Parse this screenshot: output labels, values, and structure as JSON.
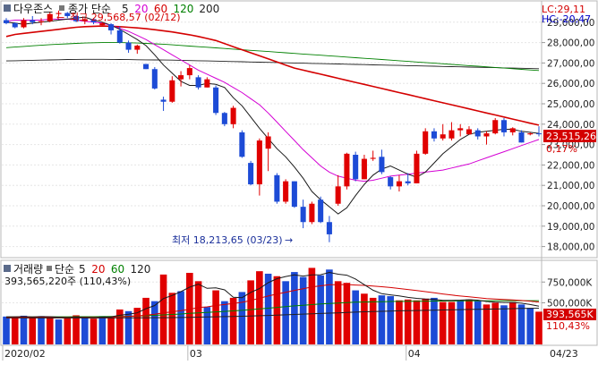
{
  "chart_data": [
    {
      "type": "candlestick",
      "legend": {
        "index_name": "다우존스",
        "settings_prefix": "종가 단순",
        "ma_periods": [
          "5",
          "20",
          "60",
          "120",
          "200"
        ],
        "ma_colors": [
          "#1a1a1a",
          "#d400d4",
          "#d40000",
          "#008000",
          "#222222"
        ]
      },
      "top_right": {
        "lc": "LC:29,11",
        "hc": "HC:-20,47"
      },
      "annotations": {
        "high_label": "최고 29,568,57 (02/12)",
        "high_value": 29568.57,
        "low_label": "최저 18,213,65 (03/23)",
        "low_value": 18213.65
      },
      "current_price_label": "23,515,26",
      "current_price": 23515.26,
      "change_pct_label": "0,17%",
      "y_ticks": [
        "29,000,00",
        "28,000,00",
        "27,000,00",
        "26,000,00",
        "25,000,00",
        "24,000,00",
        "23,000,00",
        "22,000,00",
        "21,000,00",
        "20,000,00",
        "19,000,00",
        "18,000,00"
      ],
      "y_tick_values": [
        29000,
        28000,
        27000,
        26000,
        25000,
        24000,
        23000,
        22000,
        21000,
        20000,
        19000,
        18000
      ],
      "ylim": [
        17500,
        30000
      ],
      "ohlc": [
        [
          29100,
          29200,
          28900,
          28950
        ],
        [
          28950,
          29000,
          28700,
          28750
        ],
        [
          28750,
          29200,
          28700,
          29100
        ],
        [
          29100,
          29300,
          28900,
          29000
        ],
        [
          29000,
          29200,
          28850,
          29050
        ],
        [
          29050,
          29500,
          29000,
          29400
        ],
        [
          29400,
          29568.57,
          29300,
          29450
        ],
        [
          29450,
          29500,
          29200,
          29300
        ],
        [
          29300,
          29350,
          29000,
          29050
        ],
        [
          29050,
          29200,
          28900,
          29150
        ],
        [
          29150,
          29200,
          28900,
          29000
        ],
        [
          28850,
          29000,
          28850,
          28950
        ],
        [
          28900,
          28950,
          28400,
          28600
        ],
        [
          28600,
          28800,
          27950,
          28000
        ],
        [
          28000,
          28100,
          27500,
          27650
        ],
        [
          27650,
          27900,
          27450,
          27850
        ],
        [
          26950,
          26950,
          26700,
          26700
        ],
        [
          26700,
          26800,
          25700,
          25750
        ],
        [
          25200,
          25350,
          24650,
          25100
        ],
        [
          25100,
          26350,
          25050,
          26150
        ],
        [
          26200,
          26600,
          25850,
          26400
        ],
        [
          26400,
          26900,
          26200,
          26750
        ],
        [
          26300,
          26400,
          25700,
          25800
        ],
        [
          25800,
          26300,
          25800,
          26200
        ],
        [
          25800,
          25900,
          24450,
          24550
        ],
        [
          24550,
          24600,
          23900,
          24000
        ],
        [
          24000,
          24900,
          23800,
          24800
        ],
        [
          23600,
          23700,
          22350,
          22400
        ],
        [
          22100,
          22200,
          21000,
          21050
        ],
        [
          21050,
          23300,
          20500,
          23200
        ],
        [
          22800,
          23600,
          21700,
          23400
        ],
        [
          21500,
          21600,
          20100,
          20200
        ],
        [
          20200,
          21300,
          20100,
          21200
        ],
        [
          21200,
          21200,
          19900,
          19950
        ],
        [
          19950,
          20300,
          18900,
          19200
        ],
        [
          19200,
          20200,
          19100,
          20100
        ],
        [
          20300,
          20450,
          19150,
          19200
        ],
        [
          19200,
          19500,
          18213.65,
          18600
        ],
        [
          20100,
          21500,
          20000,
          20950
        ],
        [
          20950,
          22600,
          20800,
          22550
        ],
        [
          22500,
          22650,
          21200,
          21300
        ],
        [
          21300,
          22500,
          21300,
          22300
        ],
        [
          22300,
          22700,
          22200,
          22350
        ],
        [
          22400,
          22750,
          21550,
          21650
        ],
        [
          21400,
          21450,
          20800,
          20950
        ],
        [
          20950,
          21500,
          20700,
          21200
        ],
        [
          21200,
          21600,
          21000,
          21100
        ],
        [
          21100,
          22700,
          21100,
          22550
        ],
        [
          22550,
          23800,
          22500,
          23650
        ],
        [
          23650,
          23800,
          23150,
          23300
        ],
        [
          23300,
          24000,
          23200,
          23500
        ],
        [
          23300,
          24100,
          23200,
          23700
        ],
        [
          23700,
          24000,
          23400,
          23800
        ],
        [
          23500,
          23900,
          23500,
          23750
        ],
        [
          23700,
          23800,
          23250,
          23400
        ],
        [
          23400,
          23650,
          23000,
          23550
        ],
        [
          23550,
          24300,
          23500,
          24200
        ],
        [
          24200,
          24300,
          23400,
          23600
        ],
        [
          23600,
          23850,
          23450,
          23800
        ],
        [
          23600,
          23700,
          23100,
          23100
        ],
        [
          23500,
          23600,
          23450,
          23550
        ],
        [
          23550,
          23900,
          23400,
          23515.26
        ]
      ],
      "ma": {
        "ma5": [
          29000,
          28950,
          28900,
          28950,
          29000,
          29050,
          29100,
          29150,
          29200,
          29250,
          29100,
          29000,
          28850,
          28650,
          28400,
          28150,
          27850,
          27400,
          26900,
          26500,
          26100,
          25900,
          25900,
          26000,
          25950,
          25800,
          25300,
          24900,
          24350,
          23800,
          23300,
          22800,
          22400,
          21900,
          21350,
          20700,
          20300,
          19950,
          19600,
          19900,
          20500,
          21050,
          21500,
          21800,
          21950,
          21750,
          21550,
          21400,
          21650,
          22100,
          22550,
          22900,
          23250,
          23500,
          23600,
          23650,
          23700,
          23750,
          23750,
          23650,
          23600,
          23550
        ],
        "ma20": [
          29050,
          29100,
          29100,
          29100,
          29100,
          29150,
          29150,
          29150,
          29100,
          29050,
          29000,
          28950,
          28850,
          28700,
          28550,
          28350,
          28150,
          27900,
          27650,
          27400,
          27150,
          26900,
          26650,
          26450,
          26250,
          26050,
          25800,
          25550,
          25250,
          24950,
          24550,
          24100,
          23650,
          23200,
          22750,
          22350,
          21950,
          21650,
          21450,
          21350,
          21250,
          21200,
          21250,
          21350,
          21450,
          21500,
          21550,
          21600,
          21650,
          21700,
          21750,
          21850,
          21950,
          22050,
          22200,
          22350,
          22500,
          22650,
          22800,
          22950,
          23100,
          23250
        ],
        "ma60": [
          28300,
          28400,
          28450,
          28500,
          28550,
          28600,
          28650,
          28700,
          28750,
          28780,
          28800,
          28810,
          28800,
          28780,
          28750,
          28720,
          28680,
          28630,
          28580,
          28520,
          28450,
          28380,
          28300,
          28200,
          28100,
          27950,
          27800,
          27650,
          27500,
          27350,
          27200,
          27050,
          26900,
          26750,
          26650,
          26550,
          26450,
          26350,
          26250,
          26150,
          26050,
          25950,
          25850,
          25750,
          25650,
          25550,
          25450,
          25350,
          25250,
          25150,
          25050,
          24950,
          24850,
          24750,
          24650,
          24550,
          24450,
          24350,
          24250,
          24150,
          24050,
          23950
        ],
        "ma120": [
          27750,
          27780,
          27810,
          27840,
          27870,
          27900,
          27920,
          27940,
          27960,
          27980,
          27990,
          28000,
          28000,
          28000,
          27990,
          27980,
          27960,
          27940,
          27920,
          27890,
          27860,
          27830,
          27800,
          27770,
          27740,
          27710,
          27680,
          27650,
          27620,
          27590,
          27560,
          27530,
          27500,
          27470,
          27440,
          27410,
          27380,
          27350,
          27320,
          27290,
          27260,
          27230,
          27200,
          27170,
          27140,
          27110,
          27080,
          27050,
          27020,
          26990,
          26960,
          26930,
          26900,
          26870,
          26840,
          26810,
          26780,
          26750,
          26720,
          26690,
          26660,
          26630
        ],
        "ma200": [
          27100,
          27110,
          27120,
          27130,
          27140,
          27150,
          27160,
          27170,
          27175,
          27180,
          27180,
          27180,
          27175,
          27170,
          27165,
          27160,
          27155,
          27150,
          27145,
          27140,
          27130,
          27120,
          27110,
          27100,
          27090,
          27080,
          27070,
          27060,
          27050,
          27040,
          27030,
          27020,
          27010,
          27000,
          26990,
          26980,
          26970,
          26960,
          26950,
          26940,
          26930,
          26920,
          26910,
          26900,
          26890,
          26880,
          26870,
          26860,
          26850,
          26840,
          26830,
          26820,
          26810,
          26800,
          26790,
          26780,
          26770,
          26760,
          26750,
          26740,
          26730,
          26720
        ]
      }
    },
    {
      "type": "bar",
      "legend": {
        "label": "거래량",
        "settings_prefix": "단순",
        "ma_periods": [
          "5",
          "20",
          "60",
          "120"
        ],
        "ma_colors": [
          "#1a1a1a",
          "#d40000",
          "#008000",
          "#222222"
        ],
        "value_text": "393,565,220주 (110,43%)"
      },
      "y_ticks": [
        "750,000K",
        "500,000K"
      ],
      "y_tick_values": [
        750000,
        500000
      ],
      "ylim": [
        0,
        1000000
      ],
      "current_value_label": "393,565K",
      "change_pct_label": "110,43%",
      "values": [
        335000,
        330000,
        345000,
        320000,
        340000,
        330000,
        300000,
        315000,
        350000,
        325000,
        310000,
        340000,
        330000,
        420000,
        400000,
        440000,
        560000,
        520000,
        840000,
        620000,
        640000,
        860000,
        760000,
        450000,
        650000,
        520000,
        560000,
        630000,
        770000,
        880000,
        850000,
        820000,
        760000,
        870000,
        810000,
        920000,
        830000,
        900000,
        760000,
        740000,
        650000,
        610000,
        560000,
        590000,
        580000,
        530000,
        540000,
        530000,
        550000,
        560000,
        510000,
        510000,
        530000,
        540000,
        520000,
        480000,
        500000,
        470000,
        510000,
        480000,
        440000,
        393565
      ],
      "colors": [
        "b",
        "r",
        "b",
        "r",
        "b",
        "r",
        "b",
        "r",
        "r",
        "b",
        "r",
        "b",
        "r",
        "r",
        "b",
        "r",
        "r",
        "b",
        "r",
        "r",
        "b",
        "r",
        "r",
        "b",
        "r",
        "b",
        "r",
        "b",
        "r",
        "r",
        "b",
        "r",
        "b",
        "b",
        "b",
        "r",
        "b",
        "b",
        "r",
        "r",
        "b",
        "r",
        "r",
        "b",
        "b",
        "r",
        "r",
        "r",
        "r",
        "b",
        "r",
        "r",
        "b",
        "r",
        "b",
        "r",
        "r",
        "b",
        "r",
        "b",
        "b",
        "r"
      ],
      "ma": {
        "ma5": [
          330000,
          332000,
          334000,
          330000,
          334000,
          333000,
          327000,
          321000,
          327000,
          324000,
          320000,
          328000,
          331000,
          351000,
          362000,
          380000,
          430000,
          468000,
          552000,
          588000,
          636000,
          688000,
          724000,
          674000,
          680000,
          656000,
          568000,
          562000,
          626000,
          672000,
          742000,
          790000,
          816000,
          836000,
          822000,
          836000,
          838000,
          866000,
          844000,
          832000,
          786000,
          718000,
          652000,
          610000,
          596000,
          584000,
          566000,
          554000,
          546000,
          542000,
          530000,
          530000,
          532000,
          538000,
          532000,
          516000,
          508000,
          504000,
          504000,
          496000,
          480000,
          459000
        ],
        "ma20": [
          325000,
          326000,
          327000,
          327000,
          328000,
          328000,
          327000,
          326000,
          327000,
          327000,
          326000,
          327000,
          328000,
          332000,
          336000,
          342000,
          352000,
          362000,
          380000,
          392000,
          406000,
          422000,
          444000,
          452000,
          468000,
          480000,
          492000,
          506000,
          528000,
          556000,
          582000,
          606000,
          626000,
          650000,
          670000,
          690000,
          704000,
          718000,
          718000,
          720000,
          714000,
          710000,
          702000,
          694000,
          684000,
          672000,
          660000,
          648000,
          634000,
          620000,
          606000,
          594000,
          582000,
          572000,
          562000,
          552000,
          546000,
          540000,
          534000,
          528000,
          520000,
          510000
        ],
        "ma60": [
          330000,
          330000,
          331000,
          331000,
          332000,
          332000,
          332000,
          332000,
          333000,
          333000,
          333000,
          334000,
          335000,
          337000,
          339000,
          341000,
          345000,
          349000,
          355000,
          360000,
          366000,
          373000,
          380000,
          385000,
          391000,
          397000,
          403000,
          410000,
          418000,
          427000,
          436000,
          445000,
          454000,
          463000,
          471000,
          479000,
          486000,
          493000,
          498000,
          503000,
          507000,
          510000,
          512000,
          514000,
          516000,
          517000,
          518000,
          519000,
          520000,
          521000,
          522000,
          523000,
          524000,
          525000,
          525000,
          525000,
          526000,
          526000,
          526000,
          526000,
          526000,
          526000
        ],
        "ma120": [
          318000,
          318000,
          318000,
          318000,
          318000,
          318000,
          318000,
          318000,
          318000,
          318000,
          318000,
          318000,
          318000,
          319000,
          319000,
          319000,
          320000,
          321000,
          322000,
          323000,
          324000,
          326000,
          328000,
          330000,
          332000,
          334000,
          336000,
          339000,
          342000,
          345000,
          348000,
          352000,
          356000,
          360000,
          364000,
          368000,
          372000,
          376000,
          380000,
          384000,
          388000,
          392000,
          395000,
          398000,
          401000,
          404000,
          406000,
          408000,
          410000,
          412000,
          414000,
          416000,
          418000,
          420000,
          422000,
          424000,
          426000,
          428000,
          430000,
          432000,
          434000,
          436000
        ]
      }
    }
  ],
  "x_axis": {
    "labels": [
      "2020/02",
      "03",
      "04",
      "04/23"
    ],
    "label_index": [
      0,
      21,
      46,
      61
    ]
  }
}
